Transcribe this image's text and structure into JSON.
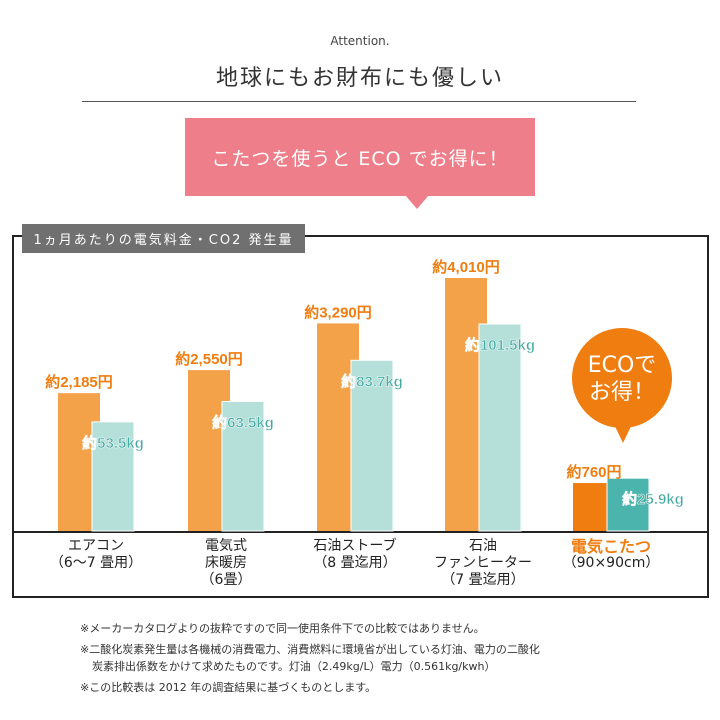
{
  "header": {
    "eyebrow": "Attention.",
    "headline": "地球にもお財布にも優しい",
    "banner": "こたつを使うと ECO でお得に！"
  },
  "chart_data": {
    "type": "bar",
    "title": "1ヵ月あたりの電気料金・CO2 発生量",
    "categories": [
      {
        "lines": [
          "エアコン",
          "（6〜7 畳用）"
        ]
      },
      {
        "lines": [
          "電気式",
          "床暖房",
          "（6畳）"
        ]
      },
      {
        "lines": [
          "石油ストーブ",
          "（8 畳迄用）"
        ]
      },
      {
        "lines": [
          "石油",
          "ファンヒーター",
          "（7 畳迄用）"
        ]
      },
      {
        "lines": [
          "電気こたつ",
          "（90×90cm）"
        ],
        "highlight": true
      }
    ],
    "series": [
      {
        "key": "cost",
        "unit": "円",
        "values": [
          2185,
          2550,
          3290,
          4010,
          760
        ],
        "labels": [
          "約2,185円",
          "約2,550円",
          "約3,290円",
          "約4,010円",
          "約760円"
        ]
      },
      {
        "key": "co2",
        "unit": "kg",
        "values": [
          53.5,
          63.5,
          83.7,
          101.5,
          25.9
        ],
        "labels": [
          "約53.5kg",
          "約63.5kg",
          "約83.7kg",
          "約101.5kg",
          "約25.9kg"
        ]
      }
    ],
    "colors": {
      "cost": "#f4a24a",
      "co2": "#b5e0da",
      "cost_highlight": "#ef7d10",
      "co2_highlight": "#4bb5ad",
      "cost_label": "#ef7d10",
      "co2_label": "#45aaa2"
    },
    "callout": [
      "ECOで",
      "お得！"
    ],
    "grid": false
  },
  "notes": [
    "※メーカーカタログよりの抜粋ですので同一使用条件下での比較ではありません。",
    "※二酸化炭素発生量は各機械の消費電力、消費燃料に環境省が出している灯油、電力の二酸化",
    "炭素排出係数をかけて求めたものです。灯油（2.49kg/L）電力（0.561kg/kwh）",
    "※この比較表は 2012 年の調査結果に基づくものとします。"
  ]
}
